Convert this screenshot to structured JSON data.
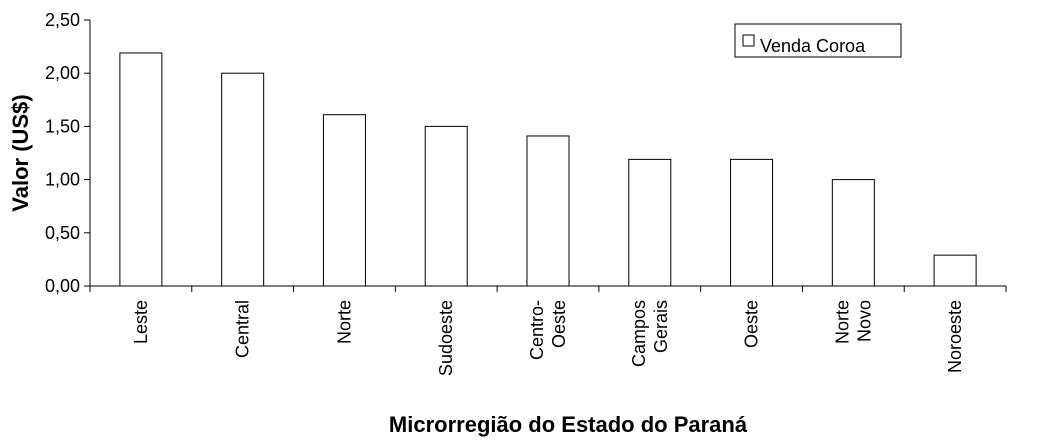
{
  "chart_data": {
    "type": "bar",
    "categories": [
      "Leste",
      "Central",
      "Norte",
      "Sudoeste",
      "Centro-Oeste",
      "Campos Gerais",
      "Oeste",
      "Norte Novo",
      "Noroeste"
    ],
    "category_lines": [
      [
        "Leste"
      ],
      [
        "Central"
      ],
      [
        "Norte"
      ],
      [
        "Sudoeste"
      ],
      [
        "Centro-",
        "Oeste"
      ],
      [
        "Campos",
        "Gerais"
      ],
      [
        "Oeste"
      ],
      [
        "Norte",
        "Novo"
      ],
      [
        "Noroeste"
      ]
    ],
    "series": [
      {
        "name": "Venda Coroa",
        "values": [
          2.19,
          2.0,
          1.61,
          1.5,
          1.41,
          1.19,
          1.19,
          1.0,
          0.29
        ],
        "color": "#ffffff"
      }
    ],
    "title": "",
    "xlabel": "Microrregião do Estado do Paraná",
    "ylabel": "Valor (US$)",
    "ylim": [
      0,
      2.5
    ],
    "yticks": [
      0,
      0.5,
      1.0,
      1.5,
      2.0,
      2.5
    ],
    "ytick_labels": [
      "0,00",
      "0,50",
      "1,00",
      "1,50",
      "2,00",
      "2,50"
    ],
    "grid": false,
    "legend_position": "top-right"
  }
}
